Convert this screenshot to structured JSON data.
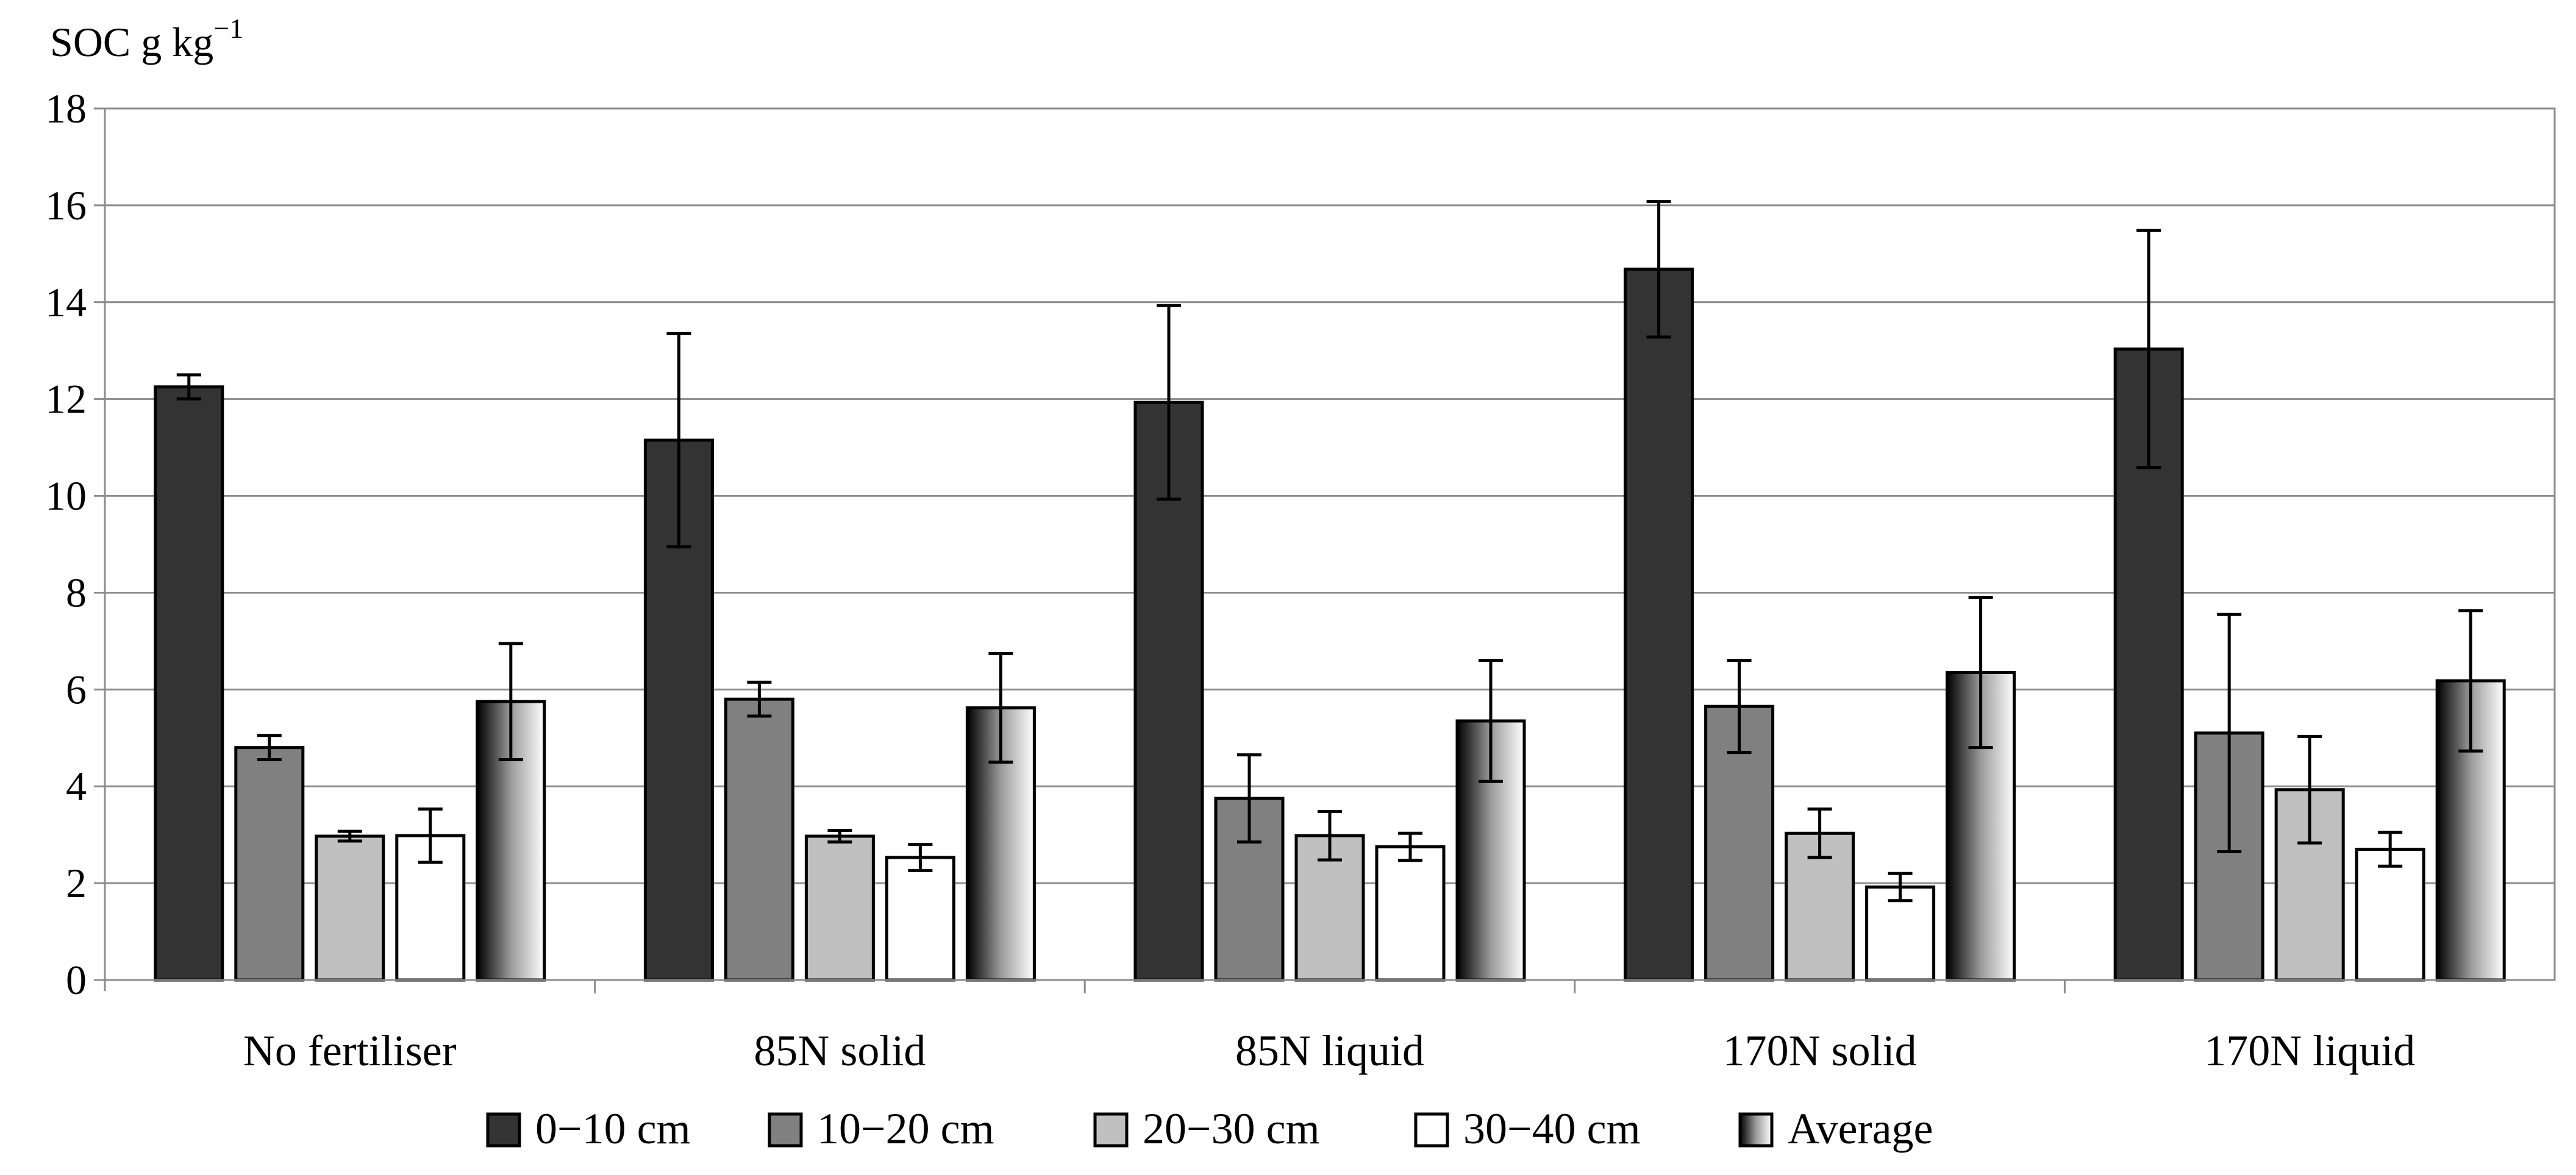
{
  "chart_data": {
    "type": "bar",
    "title": "",
    "ylabel": "SOC g kg",
    "ylabel_superscript": "−1",
    "xlabel": "",
    "ylim": [
      0,
      18
    ],
    "ytick_step": 2,
    "yticks": [
      "0",
      "2",
      "4",
      "6",
      "8",
      "10",
      "12",
      "14",
      "16",
      "18"
    ],
    "grid": true,
    "legend_position": "bottom",
    "categories": [
      "No fertiliser",
      "85N solid",
      "85N liquid",
      "170N solid",
      "170N liquid"
    ],
    "series": [
      {
        "name": "0−10 cm",
        "color": "#333333",
        "fill": "solid",
        "values": [
          12.25,
          11.15,
          11.93,
          14.68,
          13.03
        ],
        "errors": [
          0.25,
          2.2,
          2.0,
          1.4,
          2.45
        ]
      },
      {
        "name": "10−20 cm",
        "color": "#808080",
        "fill": "solid",
        "values": [
          4.8,
          5.8,
          3.75,
          5.65,
          5.1
        ],
        "errors": [
          0.25,
          0.35,
          0.9,
          0.95,
          2.45
        ]
      },
      {
        "name": "20−30 cm",
        "color": "#c0c0c0",
        "fill": "solid",
        "values": [
          2.97,
          2.97,
          2.98,
          3.03,
          3.93
        ],
        "errors": [
          0.1,
          0.12,
          0.5,
          0.5,
          1.1
        ]
      },
      {
        "name": "30−40 cm",
        "color": "#ffffff",
        "fill": "solid",
        "values": [
          2.98,
          2.53,
          2.75,
          1.92,
          2.7
        ],
        "errors": [
          0.55,
          0.27,
          0.28,
          0.28,
          0.35
        ]
      },
      {
        "name": "Average",
        "color": "#000000",
        "fill": "gradient",
        "values": [
          5.75,
          5.62,
          5.35,
          6.35,
          6.18
        ],
        "errors": [
          1.2,
          1.12,
          1.25,
          1.55,
          1.45
        ]
      }
    ]
  }
}
